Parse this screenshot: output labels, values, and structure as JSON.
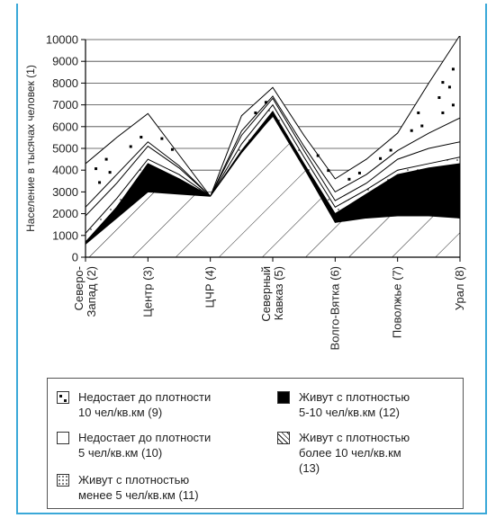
{
  "chart_data": {
    "type": "area",
    "ylabel": "Население в тысячах человек (1)",
    "ylim": [
      0,
      10000
    ],
    "yticks": [
      "0",
      "1000",
      "2000",
      "3000",
      "4000",
      "5000",
      "6000",
      "7000",
      "8000",
      "9000",
      "10000"
    ],
    "categories": [
      "Северо-\nЗапад (2)",
      "Центр (3)",
      "ЦЧР (4)",
      "Северный\nКавказ (5)",
      "Волго-Вятка (6)",
      "Поволжье (7)",
      "Урал (8)"
    ],
    "x": [
      0,
      1,
      2,
      3,
      4,
      5,
      6,
      7,
      8,
      9,
      10,
      11,
      12
    ],
    "series": [
      {
        "name": "Живут с плотностью более 10 чел/кв.км (13)",
        "pattern": "hatch",
        "values": [
          600,
          1800,
          3000,
          2900,
          2800,
          4800,
          6500,
          4100,
          1600,
          1800,
          1900,
          1900,
          1800
        ]
      },
      {
        "name": "Живут с плотностью 5-10 чел/кв.км (12)",
        "pattern": "black",
        "values": [
          700,
          2300,
          4300,
          3600,
          2800,
          4900,
          6700,
          4300,
          2000,
          2900,
          3800,
          4100,
          4300
        ]
      },
      {
        "name": "Живут с плотностью менее 5 чел/кв.км (11)",
        "pattern": "small-dots",
        "values": [
          1100,
          2700,
          4500,
          3800,
          2800,
          5200,
          7000,
          4600,
          2300,
          3100,
          4000,
          4300,
          4600
        ]
      },
      {
        "name": "Недостает до плотности 5 чел/кв.км (10)",
        "pattern": "white",
        "values": [
          1900,
          3400,
          5100,
          4100,
          2800,
          5600,
          7300,
          4900,
          2600,
          3400,
          4500,
          5000,
          5300
        ]
      },
      {
        "name": "Недостает до плотности 10 чел/кв.км (9)",
        "pattern": "big-dots",
        "values": [
          2300,
          3800,
          5300,
          4200,
          2800,
          5800,
          7400,
          5100,
          3000,
          3800,
          4900,
          5700,
          6400
        ]
      },
      {
        "name": "",
        "pattern": "outline",
        "values": [
          4300,
          5500,
          6600,
          4700,
          2800,
          6500,
          7800,
          5600,
          3600,
          4500,
          5700,
          8000,
          10200
        ]
      }
    ],
    "category_index": [
      0,
      2,
      4,
      6,
      8,
      10,
      12
    ]
  },
  "legend": {
    "items": [
      {
        "label": "Недостает до  плотности\n10 чел/кв.км (9)",
        "swatch": "big-dots"
      },
      {
        "label": "Живут с плотностью\n5-10 чел/кв.км (12)",
        "swatch": "black"
      },
      {
        "label": "Недостает до плотности\n5 чел/кв.км (10)",
        "swatch": "white"
      },
      {
        "label": "Живут с плотностью\nболее 10 чел/кв.км\n(13)",
        "swatch": "hatch"
      },
      {
        "label": "Живут с плотностью\nменее 5 чел/кв.км (11)",
        "swatch": "small-dots"
      }
    ]
  },
  "colors": {
    "frame": "#3aa8d8",
    "ink": "#000000"
  }
}
